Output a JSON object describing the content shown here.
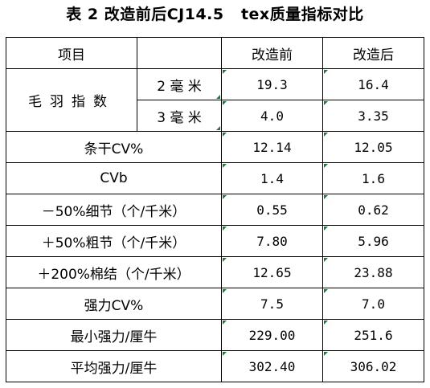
{
  "title": "表 2 改造前后CJ14.5   tex质量指标对比",
  "header": {
    "item_label": "项目",
    "col_before": "改造前",
    "col_after": "改造后"
  },
  "hairiness": {
    "label": "毛羽指数",
    "rows": [
      {
        "sub": "2 毫 米",
        "before": "19.3",
        "after": "16.4"
      },
      {
        "sub": "3 毫 米",
        "before": "4.0",
        "after": "3.35"
      }
    ]
  },
  "rows": [
    {
      "label": "条干CV%",
      "before": "12.14",
      "after": "12.05"
    },
    {
      "label": "CVb",
      "before": "1.4",
      "after": "1.6"
    },
    {
      "label": "－50%细节（个/千米）",
      "before": "0.55",
      "after": "0.62"
    },
    {
      "label": "＋50%粗节（个/千米）",
      "before": "7.80",
      "after": "5.96"
    },
    {
      "label": "＋200%棉结（个/千米）",
      "before": "12.65",
      "after": "23.88"
    },
    {
      "label": "强力CV%",
      "before": "7.5",
      "after": "7.0"
    },
    {
      "label": "最小强力/厘牛",
      "before": "229.00",
      "after": "251.6"
    },
    {
      "label": "平均强力/厘牛",
      "before": "302.40",
      "after": "306.02"
    }
  ],
  "colors": {
    "border": "#000000",
    "marker": "#1f7a3a"
  }
}
